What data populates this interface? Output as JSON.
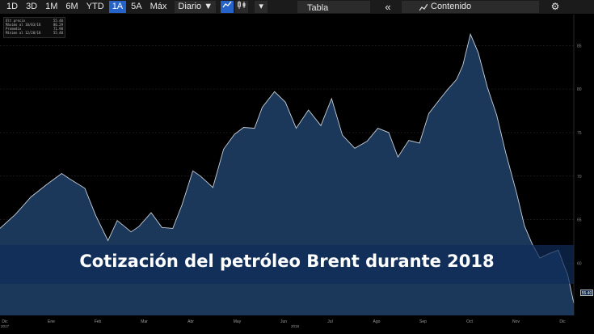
{
  "toolbar": {
    "periods": [
      "1D",
      "3D",
      "1M",
      "6M",
      "YTD",
      "1A",
      "5A",
      "Máx"
    ],
    "active_period": "1A",
    "frequency": "Diario",
    "frequency_arrow": "▼",
    "options_arrow": "▾",
    "table_label": "Tabla",
    "collapse_glyph": "«",
    "contenido_label": "Contenido",
    "gear_glyph": "⚙"
  },
  "legend": {
    "rows": [
      {
        "label": "Últ precio",
        "value": "55.40"
      },
      {
        "label": "Máximo al 10/03/18",
        "value": "86.29"
      },
      {
        "label": "Promedio",
        "value": "71.98"
      },
      {
        "label": "Mínimo al 12/20/18",
        "value": "55.40"
      }
    ]
  },
  "overlay_title": "Cotización del petróleo Brent durante 2018",
  "last_price_tag": "55.40",
  "colors": {
    "background": "#000000",
    "area_fill": "#1c3a5e",
    "line": "#c8d0d8",
    "active_tab": "#2563c9",
    "title_band": "#0f2d5a"
  },
  "chart_data": {
    "type": "area",
    "title": "Cotización del petróleo Brent durante 2018",
    "xlabel": "",
    "ylabel": "",
    "ylim": [
      54,
      88
    ],
    "y_ticks": [
      60,
      65,
      70,
      75,
      80,
      85
    ],
    "x_ticks": [
      "Dic 2017",
      "Ene",
      "Feb",
      "Mar",
      "Abr",
      "May",
      "Jun",
      "Jul",
      "Ago",
      "Sep",
      "Oct",
      "Nov",
      "Dic"
    ],
    "year_label": "2018",
    "x_index_max": 372,
    "series": [
      {
        "x": [
          0,
          10,
          20,
          30,
          40,
          45,
          55,
          62,
          70,
          76,
          85,
          90,
          98,
          105,
          112,
          118,
          125,
          130,
          138,
          145,
          152,
          158,
          165,
          170,
          178,
          185,
          192,
          200,
          208,
          215,
          222,
          230,
          238,
          245,
          252,
          258,
          265,
          272,
          278,
          285,
          290,
          296,
          300,
          305,
          310,
          316,
          322,
          328,
          335,
          340,
          345,
          350,
          356,
          362,
          366,
          368,
          372
        ],
        "values": [
          64.0,
          65.6,
          67.6,
          69.0,
          70.3,
          69.7,
          68.6,
          65.5,
          62.6,
          64.9,
          63.6,
          64.2,
          65.8,
          64.1,
          64.0,
          66.7,
          70.6,
          70.0,
          68.7,
          73.1,
          74.8,
          75.6,
          75.5,
          77.9,
          79.7,
          78.5,
          75.5,
          77.6,
          75.8,
          78.9,
          74.7,
          73.2,
          74.0,
          75.5,
          75.0,
          72.2,
          74.1,
          73.8,
          77.2,
          78.8,
          79.9,
          81.1,
          82.7,
          86.3,
          84.2,
          80.2,
          77.0,
          72.6,
          68.0,
          64.3,
          62.2,
          60.6,
          61.1,
          61.5,
          59.6,
          58.7,
          55.4
        ]
      }
    ]
  }
}
